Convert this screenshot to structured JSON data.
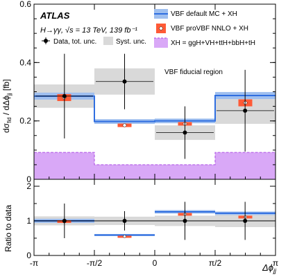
{
  "chart_data": {
    "type": "step",
    "atlas_label": "ATLAS",
    "info_line": "H→γγ, √s = 13 TeV, 139 fb⁻¹",
    "region_label": "VBF fiducial region",
    "xlabel": "Δϕjj",
    "xlabel_main": "Δϕ",
    "xlabel_sub": "jj",
    "ylabel": "dσfid / dΔϕjj [fb]",
    "ylabel_parts": {
      "a": "dσ",
      "b": "fid",
      "c": " / dΔϕ",
      "d": "jj",
      "e": " [fb]"
    },
    "ratio_ylabel": "Ratio to data",
    "bins": [
      -3.14159,
      -1.5708,
      0,
      1.5708,
      3.14159
    ],
    "x_ticks": [
      "-π",
      "-π/2",
      "0",
      "π/2",
      "π"
    ],
    "top_ylim": [
      0,
      0.6
    ],
    "top_yticks": [
      "0",
      "0.2",
      "0.4",
      "0.6"
    ],
    "ratio_ylim": [
      0,
      2.2
    ],
    "ratio_yticks": [
      "0",
      "1",
      "2"
    ],
    "legend": {
      "data": "Data, tot. unc.",
      "syst": "Syst. unc.",
      "vbf_default": "VBF default MC + XH",
      "vbf_provbf": "VBF proVBF NNLO + XH",
      "xh": "XH = ggH+VH+ttH+bbH+tH"
    },
    "colors": {
      "vbf_default": "#2f6ee0",
      "vbf_default_band": "#9fbfef",
      "provbf": "#ff5a36",
      "xh_fill": "#d9a8f7",
      "xh_line": "#b45ee6",
      "syst": "#d9d9d9"
    },
    "data": {
      "x": [
        -2.35,
        -0.785,
        0.785,
        2.35
      ],
      "y": [
        0.285,
        0.335,
        0.16,
        0.235
      ],
      "tot_unc": [
        [
          0.145,
          0.145
        ],
        [
          0.095,
          0.095
        ],
        [
          0.09,
          0.09
        ],
        [
          0.14,
          0.14
        ]
      ],
      "syst_unc": [
        0.04,
        0.045,
        0.025,
        0.045
      ]
    },
    "vbf_default": {
      "values": [
        0.285,
        0.198,
        0.2,
        0.287
      ],
      "band": [
        0.012,
        0.008,
        0.008,
        0.012
      ]
    },
    "vbf_provbf": {
      "values": [
        0.28,
        0.185,
        0.19,
        0.262
      ],
      "err": [
        0.012,
        0.006,
        0.006,
        0.012
      ]
    },
    "xh": {
      "values": [
        0.092,
        0.05,
        0.05,
        0.092
      ]
    },
    "ratio": {
      "data_unc": [
        0.5,
        0.28,
        0.55,
        0.55
      ],
      "syst_unc": [
        0.13,
        0.12,
        0.15,
        0.18
      ],
      "vbf_default": [
        1.0,
        0.59,
        1.26,
        1.22
      ],
      "vbf_default_band": [
        0.06,
        0.03,
        0.05,
        0.05
      ],
      "vbf_provbf": [
        0.98,
        0.55,
        1.19,
        1.11
      ],
      "provbf_err": [
        0.04,
        0.02,
        0.04,
        0.04
      ]
    }
  }
}
